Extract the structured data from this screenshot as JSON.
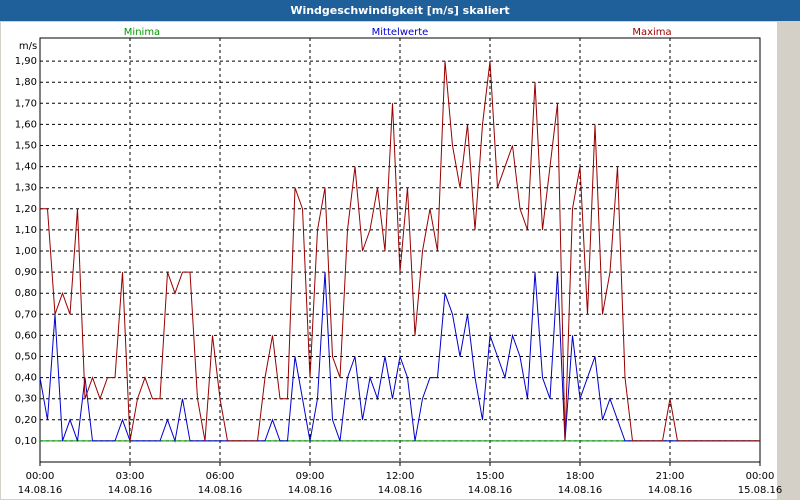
{
  "chart_data": {
    "type": "line",
    "title": "Windgeschwindigkeit [m/s] skaliert",
    "y_unit": "m/s",
    "x": [
      0,
      0.25,
      0.5,
      0.75,
      1,
      1.25,
      1.5,
      1.75,
      2,
      2.25,
      2.5,
      2.75,
      3,
      3.25,
      3.5,
      3.75,
      4,
      4.25,
      4.5,
      4.75,
      5,
      5.25,
      5.5,
      5.75,
      6,
      6.25,
      6.5,
      6.75,
      7,
      7.25,
      7.5,
      7.75,
      8,
      8.25,
      8.5,
      8.75,
      9,
      9.25,
      9.5,
      9.75,
      10,
      10.25,
      10.5,
      10.75,
      11,
      11.25,
      11.5,
      11.75,
      12,
      12.25,
      12.5,
      12.75,
      13,
      13.25,
      13.5,
      13.75,
      14,
      14.25,
      14.5,
      14.75,
      15,
      15.25,
      15.5,
      15.75,
      16,
      16.25,
      16.5,
      16.75,
      17,
      17.25,
      17.5,
      17.75,
      18,
      18.25,
      18.5,
      18.75,
      19,
      19.25,
      19.5,
      19.75,
      20,
      20.25,
      20.5,
      20.75,
      21,
      21.25,
      21.5,
      21.75,
      22,
      22.25,
      22.5,
      22.75,
      23,
      23.25,
      23.5,
      23.75,
      24
    ],
    "series": [
      {
        "name": "Minima",
        "color": "#009900",
        "values": [
          0.1,
          0.1,
          0.1,
          0.1,
          0.1,
          0.1,
          0.1,
          0.1,
          0.1,
          0.1,
          0.1,
          0.1,
          0.1,
          0.1,
          0.1,
          0.1,
          0.1,
          0.1,
          0.1,
          0.1,
          0.1,
          0.1,
          0.1,
          0.1,
          0.1,
          0.1,
          0.1,
          0.1,
          0.1,
          0.1,
          0.1,
          0.1,
          0.1,
          0.1,
          0.1,
          0.1,
          0.1,
          0.1,
          0.1,
          0.1,
          0.1,
          0.1,
          0.1,
          0.1,
          0.1,
          0.1,
          0.1,
          0.1,
          0.1,
          0.1,
          0.1,
          0.1,
          0.1,
          0.1,
          0.1,
          0.1,
          0.1,
          0.1,
          0.1,
          0.1,
          0.1,
          0.1,
          0.1,
          0.1,
          0.1,
          0.1,
          0.1,
          0.1,
          0.1,
          0.1,
          0.1,
          0.1,
          0.1,
          0.1,
          0.1,
          0.1,
          0.1,
          0.1,
          0.1,
          0.1,
          0.1,
          0.1,
          0.1,
          0.1,
          0.1,
          0.1,
          0.1,
          0.1,
          0.1,
          0.1,
          0.1,
          0.1,
          0.1,
          0.1,
          0.1,
          0.1,
          0.1
        ]
      },
      {
        "name": "Mittelwerte",
        "color": "#0000cc",
        "values": [
          0.4,
          0.2,
          0.7,
          0.1,
          0.2,
          0.1,
          0.4,
          0.1,
          0.1,
          0.1,
          0.1,
          0.2,
          0.1,
          0.1,
          0.1,
          0.1,
          0.1,
          0.2,
          0.1,
          0.3,
          0.1,
          0.1,
          0.1,
          0.1,
          0.1,
          0.1,
          0.1,
          0.1,
          0.1,
          0.1,
          0.1,
          0.2,
          0.1,
          0.1,
          0.5,
          0.3,
          0.1,
          0.3,
          0.9,
          0.2,
          0.1,
          0.4,
          0.5,
          0.2,
          0.4,
          0.3,
          0.5,
          0.3,
          0.5,
          0.4,
          0.1,
          0.3,
          0.4,
          0.4,
          0.8,
          0.7,
          0.5,
          0.7,
          0.4,
          0.2,
          0.6,
          0.5,
          0.4,
          0.6,
          0.5,
          0.3,
          0.9,
          0.4,
          0.3,
          0.9,
          0.1,
          0.6,
          0.3,
          0.4,
          0.5,
          0.2,
          0.3,
          0.2,
          0.1,
          0.1,
          0.1,
          0.1,
          0.1,
          0.1,
          0.1,
          0.1,
          0.1,
          0.1,
          0.1,
          0.1,
          0.1,
          0.1,
          0.1,
          0.1,
          0.1,
          0.1,
          0.1
        ]
      },
      {
        "name": "Maxima",
        "color": "#990000",
        "values": [
          1.2,
          1.2,
          0.7,
          0.8,
          0.7,
          1.2,
          0.3,
          0.4,
          0.3,
          0.4,
          0.4,
          0.9,
          0.1,
          0.3,
          0.4,
          0.3,
          0.3,
          0.9,
          0.8,
          0.9,
          0.9,
          0.3,
          0.1,
          0.6,
          0.3,
          0.1,
          0.1,
          0.1,
          0.1,
          0.1,
          0.4,
          0.6,
          0.3,
          0.3,
          1.3,
          1.2,
          0.4,
          1.1,
          1.3,
          0.5,
          0.4,
          1.1,
          1.4,
          1.0,
          1.1,
          1.3,
          1.0,
          1.7,
          0.9,
          1.3,
          0.6,
          1.0,
          1.2,
          1.0,
          1.9,
          1.5,
          1.3,
          1.6,
          1.1,
          1.6,
          1.9,
          1.3,
          1.4,
          1.5,
          1.2,
          1.1,
          1.8,
          1.1,
          1.4,
          1.7,
          0.1,
          1.2,
          1.4,
          0.7,
          1.6,
          0.7,
          0.9,
          1.4,
          0.4,
          0.1,
          0.1,
          0.1,
          0.1,
          0.1,
          0.3,
          0.1,
          0.1,
          0.1,
          0.1,
          0.1,
          0.1,
          0.1,
          0.1,
          0.1,
          0.1,
          0.1,
          0.1
        ]
      }
    ],
    "xlim": [
      0,
      24
    ],
    "xticks": [
      {
        "value": 0,
        "label": "00:00"
      },
      {
        "value": 3,
        "label": "03:00"
      },
      {
        "value": 6,
        "label": "06:00"
      },
      {
        "value": 9,
        "label": "09:00"
      },
      {
        "value": 12,
        "label": "12:00"
      },
      {
        "value": 15,
        "label": "15:00"
      },
      {
        "value": 18,
        "label": "18:00"
      },
      {
        "value": 21,
        "label": "21:00"
      },
      {
        "value": 24,
        "label": "00:00"
      }
    ],
    "xtick_dates": [
      "14.08.16",
      "14.08.16",
      "14.08.16",
      "14.08.16",
      "14.08.16",
      "14.08.16",
      "14.08.16",
      "14.08.16",
      "15.08.16"
    ],
    "ylim": [
      0,
      2
    ],
    "yticks": [
      {
        "value": 0.1,
        "label": "0,10"
      },
      {
        "value": 0.2,
        "label": "0,20"
      },
      {
        "value": 0.3,
        "label": "0,30"
      },
      {
        "value": 0.4,
        "label": "0,40"
      },
      {
        "value": 0.5,
        "label": "0,50"
      },
      {
        "value": 0.6,
        "label": "0,60"
      },
      {
        "value": 0.7,
        "label": "0,70"
      },
      {
        "value": 0.8,
        "label": "0,80"
      },
      {
        "value": 0.9,
        "label": "0,90"
      },
      {
        "value": 1.0,
        "label": "1,00"
      },
      {
        "value": 1.1,
        "label": "1,10"
      },
      {
        "value": 1.2,
        "label": "1,20"
      },
      {
        "value": 1.3,
        "label": "1,30"
      },
      {
        "value": 1.4,
        "label": "1,40"
      },
      {
        "value": 1.5,
        "label": "1,50"
      },
      {
        "value": 1.6,
        "label": "1,60"
      },
      {
        "value": 1.7,
        "label": "1,70"
      },
      {
        "value": 1.8,
        "label": "1,80"
      },
      {
        "value": 1.9,
        "label": "1,90"
      }
    ],
    "grid": true
  }
}
